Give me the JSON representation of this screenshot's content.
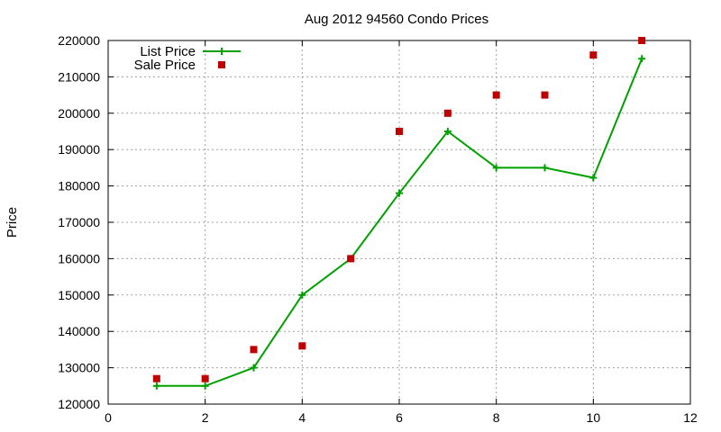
{
  "chart_data": {
    "type": "line",
    "title": "Aug 2012 94560 Condo Prices",
    "xlabel": "",
    "ylabel": "Price",
    "xlim": [
      0,
      12
    ],
    "ylim": [
      120000,
      220000
    ],
    "x_ticks": [
      0,
      2,
      4,
      6,
      8,
      10,
      12
    ],
    "y_ticks": [
      120000,
      130000,
      140000,
      150000,
      160000,
      170000,
      180000,
      190000,
      200000,
      210000,
      220000
    ],
    "grid": true,
    "legend_position": "top-left",
    "series": [
      {
        "name": "List Price",
        "style": "line-with-plus-markers",
        "color": "#00a000",
        "x": [
          1,
          2,
          3,
          4,
          5,
          6,
          7,
          8,
          9,
          10,
          11
        ],
        "y": [
          125000,
          125000,
          130000,
          150000,
          160000,
          178000,
          195000,
          185000,
          185000,
          182250,
          215000
        ]
      },
      {
        "name": "Sale Price",
        "style": "square-markers",
        "color": "#c00000",
        "x": [
          1,
          2,
          3,
          4,
          5,
          6,
          7,
          8,
          9,
          10,
          11
        ],
        "y": [
          127000,
          127000,
          135000,
          136000,
          160000,
          195000,
          200000,
          205000,
          205000,
          216000,
          220000
        ]
      }
    ]
  }
}
